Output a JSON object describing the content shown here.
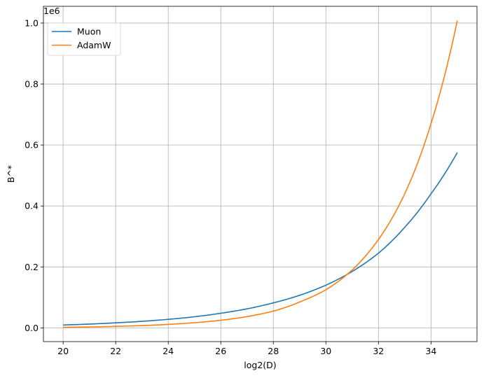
{
  "chart_data": {
    "type": "line",
    "title": "",
    "xlabel": "log2(D)",
    "ylabel": "B^*",
    "offset_text": "1e6",
    "y_scale_factor": 1000000,
    "xlim": [
      19.25,
      35.75
    ],
    "ylim": [
      -45000,
      1055000
    ],
    "xticks": [
      20,
      22,
      24,
      26,
      28,
      30,
      32,
      34
    ],
    "xtick_labels": [
      "20",
      "22",
      "24",
      "26",
      "28",
      "30",
      "32",
      "34"
    ],
    "yticks": [
      0,
      200000,
      400000,
      600000,
      800000,
      1000000
    ],
    "ytick_labels": [
      "0.0",
      "0.2",
      "0.4",
      "0.6",
      "0.8",
      "1.0"
    ],
    "grid": true,
    "legend_position": "upper-left",
    "series": [
      {
        "name": "Muon",
        "color": "#1f77b4",
        "x": [
          20,
          21,
          22,
          23,
          24,
          25,
          26,
          27,
          28,
          29,
          30,
          31,
          32,
          33,
          34,
          35
        ],
        "y": [
          9500,
          12500,
          16500,
          21500,
          28000,
          36500,
          48000,
          62500,
          82000,
          107000,
          140000,
          185000,
          245000,
          330000,
          440000,
          575000
        ]
      },
      {
        "name": "AdamW",
        "color": "#ff7f0e",
        "x": [
          20,
          21,
          22,
          23,
          24,
          25,
          26,
          27,
          28,
          29,
          30,
          31,
          32,
          33,
          34,
          35
        ],
        "y": [
          2000,
          3000,
          5000,
          7500,
          11500,
          17000,
          25000,
          37000,
          55000,
          85000,
          125000,
          190000,
          290000,
          440000,
          670000,
          1008000
        ]
      }
    ]
  }
}
